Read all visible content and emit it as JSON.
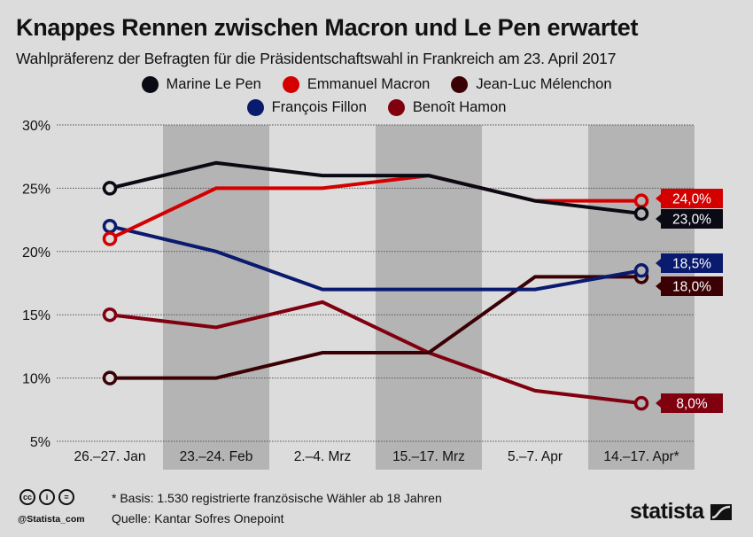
{
  "header": {
    "title": "Knappes Rennen zwischen Macron und Le Pen erwartet",
    "subtitle": "Wahlpräferenz der Befragten für die Präsidentschaftswahl in Frankreich am 23. April 2017"
  },
  "chart_data": {
    "type": "line",
    "title": "Knappes Rennen zwischen Macron und Le Pen erwartet",
    "subtitle": "Wahlpräferenz der Befragten für die Präsidentschaftswahl in Frankreich am 23. April 2017",
    "xlabel": "",
    "ylabel": "",
    "categories": [
      "26.–27. Jan",
      "23.–24. Feb",
      "2.–4. Mrz",
      "15.–17. Mrz",
      "5.–7. Apr",
      "14.–17. Apr*"
    ],
    "ylim": [
      5,
      30
    ],
    "yticks": [
      5,
      10,
      15,
      20,
      25,
      30
    ],
    "ytick_labels": [
      "5%",
      "10%",
      "15%",
      "20%",
      "25%",
      "30%"
    ],
    "grid": true,
    "legend_position": "top-center",
    "series": [
      {
        "name": "Marine Le Pen",
        "color": "#0a0a14",
        "values": [
          25,
          27,
          26,
          26,
          24,
          23
        ],
        "end_label": "23,0%"
      },
      {
        "name": "Emmanuel Macron",
        "color": "#d40000",
        "values": [
          21,
          25,
          25,
          26,
          24,
          24
        ],
        "end_label": "24,0%"
      },
      {
        "name": "Jean-Luc Mélenchon",
        "color": "#3a0004",
        "values": [
          10,
          10,
          12,
          12,
          18,
          18
        ],
        "end_label": "18,0%"
      },
      {
        "name": "François Fillon",
        "color": "#0a1a6e",
        "values": [
          22,
          20,
          17,
          17,
          17,
          18.5
        ],
        "end_label": "18,5%"
      },
      {
        "name": "Benoît Hamon",
        "color": "#800010",
        "values": [
          15,
          14,
          16,
          12,
          9,
          8
        ],
        "end_label": "8,0%"
      }
    ]
  },
  "legend": {
    "row1": [
      "Marine Le Pen",
      "Emmanuel Macron",
      "Jean-Luc Mélenchon"
    ],
    "row2": [
      "François Fillon",
      "Benoît Hamon"
    ]
  },
  "footer": {
    "note": "* Basis: 1.530 registrierte französische Wähler ab 18 Jahren",
    "source": "Quelle: Kantar Sofres Onepoint",
    "handle": "@Statista_com",
    "logo": "statista",
    "cc_icons": [
      "cc",
      "by-person",
      "nd-equals"
    ]
  }
}
